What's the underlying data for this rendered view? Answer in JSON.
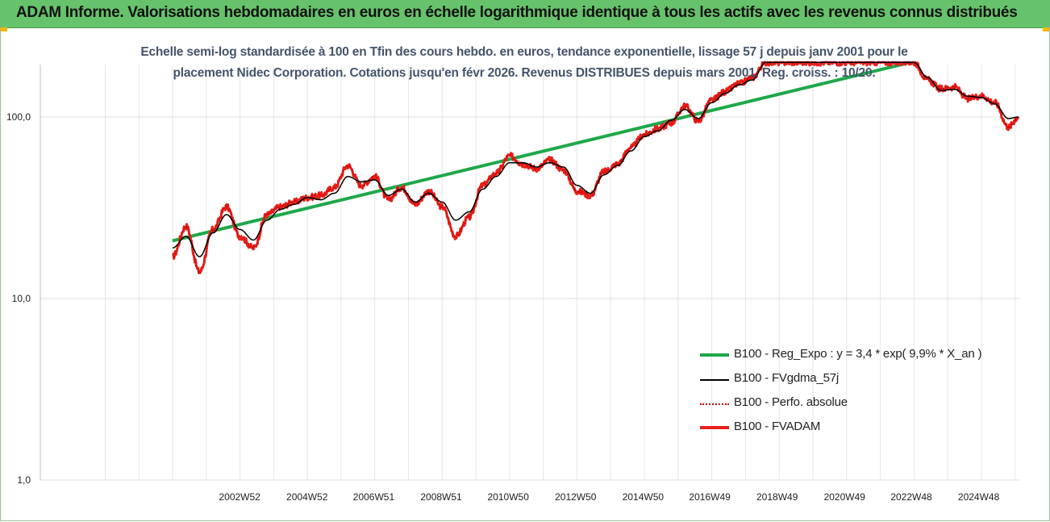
{
  "header": {
    "title": "ADAM Informe. Valorisations hebdomadaires en euros en échelle logarithmique identique à tous les actifs avec les revenus connus distribués",
    "background_color": "#66c36b"
  },
  "chart_data": {
    "type": "line",
    "title": "Echelle semi-log standardisée à 100 en Tfin des cours hebdo. en euros, tendance exponentielle, lissage 57 j depuis janv 2001 pour le placement Nidec Corporation. Cotations jusqu'en févr 2026. Revenus DISTRIBUES depuis mars 2001. Reg. croiss. : 10/20.",
    "title_lines": [
      "Echelle semi-log standardisée à 100 en Tfin des cours hebdo. en euros, tendance exponentielle, lissage 57 j depuis janv 2001 pour le",
      "placement Nidec Corporation. Cotations jusqu'en févr 2026. Revenus DISTRIBUES depuis mars 2001. Reg. croiss. : 10/20."
    ],
    "y_scale": "log",
    "ylim": [
      1,
      200
    ],
    "yticks": [
      "1,0",
      "10,0",
      "100,0"
    ],
    "x_start": 2001.0,
    "x_end": 2026.15,
    "xticks": [
      {
        "label": "2002W52",
        "x": 2002.99
      },
      {
        "label": "2004W52",
        "x": 2004.99
      },
      {
        "label": "2006W51",
        "x": 2006.97
      },
      {
        "label": "2008W51",
        "x": 2008.97
      },
      {
        "label": "2010W50",
        "x": 2010.96
      },
      {
        "label": "2012W50",
        "x": 2012.96
      },
      {
        "label": "2014W50",
        "x": 2014.96
      },
      {
        "label": "2016W49",
        "x": 2016.94
      },
      {
        "label": "2018W49",
        "x": 2018.94
      },
      {
        "label": "2020W49",
        "x": 2020.94
      },
      {
        "label": "2022W48",
        "x": 2022.92
      },
      {
        "label": "2024W48",
        "x": 2024.92
      }
    ],
    "grid": "vertical lines, horizontal at 1, 10, 100",
    "legend_placement": "bottom-right",
    "series": [
      {
        "name": "B100 - Reg_Expo : y = 3,4 * exp( 9,9% *  X_an )",
        "color": "#1fa84a",
        "style": "solid-thick",
        "x": [
          2001.0,
          2022.9
        ],
        "y": [
          20.8,
          200
        ]
      },
      {
        "name": "B100 - FVgdma_57j",
        "color": "#000000",
        "style": "solid-thin",
        "x": [
          2001.0,
          2001.4,
          2001.8,
          2002.2,
          2002.6,
          2003.0,
          2003.4,
          2003.8,
          2004.2,
          2004.6,
          2005.0,
          2005.4,
          2005.8,
          2006.2,
          2006.6,
          2007.0,
          2007.4,
          2007.8,
          2008.2,
          2008.6,
          2009.0,
          2009.4,
          2009.8,
          2010.2,
          2010.6,
          2011.0,
          2011.4,
          2011.8,
          2012.2,
          2012.6,
          2013.0,
          2013.4,
          2013.8,
          2014.2,
          2014.6,
          2015.0,
          2015.4,
          2015.8,
          2016.2,
          2016.6,
          2017.0,
          2017.4,
          2017.8,
          2018.2,
          2018.6,
          2019.0,
          2019.4,
          2019.8,
          2020.2,
          2020.6,
          2021.0,
          2021.4,
          2021.8,
          2022.2,
          2022.6,
          2023.0,
          2023.4,
          2023.8,
          2024.2,
          2024.6,
          2025.0,
          2025.4,
          2025.8,
          2026.1
        ],
        "y": [
          19,
          22,
          17,
          23,
          29,
          24,
          21,
          27,
          31,
          33,
          36,
          35,
          38,
          47,
          44,
          45,
          37,
          40,
          34,
          38,
          34,
          27,
          30,
          40,
          47,
          56,
          56,
          53,
          56,
          53,
          42,
          38,
          48,
          54,
          65,
          78,
          84,
          96,
          110,
          98,
          120,
          135,
          150,
          160,
          200,
          200,
          200,
          200,
          200,
          200,
          200,
          200,
          200,
          200,
          200,
          200,
          165,
          140,
          142,
          130,
          128,
          118,
          98,
          100
        ]
      },
      {
        "name": "B100 - Perfo. absolue",
        "color": "#c00000",
        "style": "dotted",
        "x": [
          2001.0,
          2001.4,
          2001.8,
          2002.2,
          2002.6,
          2003.0,
          2003.4,
          2003.8,
          2004.2,
          2004.6,
          2005.0,
          2005.4,
          2005.8,
          2006.2,
          2006.6,
          2007.0,
          2007.4,
          2007.8,
          2008.2,
          2008.6,
          2009.0,
          2009.4,
          2009.8,
          2010.2,
          2010.6,
          2011.0,
          2011.4,
          2011.8,
          2012.2,
          2012.6,
          2013.0,
          2013.4,
          2013.8,
          2014.2,
          2014.6,
          2015.0,
          2015.4,
          2015.8,
          2016.2,
          2016.6,
          2017.0,
          2017.4,
          2017.8,
          2018.2,
          2018.6,
          2019.0,
          2019.4,
          2019.8,
          2020.2,
          2020.6,
          2021.0,
          2021.4,
          2021.8,
          2022.2,
          2022.6,
          2023.0,
          2023.4,
          2023.8,
          2024.2,
          2024.6,
          2025.0,
          2025.4,
          2025.8,
          2026.1
        ],
        "y": [
          17,
          25,
          14,
          24,
          32,
          22,
          19,
          29,
          32,
          34,
          36,
          37,
          41,
          54,
          42,
          47,
          35,
          41,
          33,
          39,
          32,
          22,
          28,
          42,
          49,
          61,
          55,
          52,
          58,
          51,
          39,
          37,
          50,
          55,
          68,
          80,
          86,
          93,
          115,
          95,
          124,
          138,
          152,
          165,
          200,
          200,
          200,
          200,
          200,
          200,
          200,
          200,
          200,
          200,
          200,
          200,
          160,
          143,
          146,
          126,
          131,
          120,
          88,
          100
        ]
      },
      {
        "name": "B100 - FVADAM",
        "color": "#e8211b",
        "style": "solid-thick",
        "x": [
          2001.0,
          2001.4,
          2001.8,
          2002.2,
          2002.6,
          2003.0,
          2003.4,
          2003.8,
          2004.2,
          2004.6,
          2005.0,
          2005.4,
          2005.8,
          2006.2,
          2006.6,
          2007.0,
          2007.4,
          2007.8,
          2008.2,
          2008.6,
          2009.0,
          2009.4,
          2009.8,
          2010.2,
          2010.6,
          2011.0,
          2011.4,
          2011.8,
          2012.2,
          2012.6,
          2013.0,
          2013.4,
          2013.8,
          2014.2,
          2014.6,
          2015.0,
          2015.4,
          2015.8,
          2016.2,
          2016.6,
          2017.0,
          2017.4,
          2017.8,
          2018.2,
          2018.6,
          2019.0,
          2019.4,
          2019.8,
          2020.2,
          2020.6,
          2021.0,
          2021.4,
          2021.8,
          2022.2,
          2022.6,
          2023.0,
          2023.4,
          2023.8,
          2024.2,
          2024.6,
          2025.0,
          2025.4,
          2025.8,
          2026.1
        ],
        "y": [
          17,
          25,
          14,
          24,
          32,
          22,
          19,
          29,
          32,
          34,
          36,
          37,
          41,
          54,
          42,
          47,
          35,
          41,
          33,
          39,
          32,
          22,
          28,
          42,
          49,
          61,
          55,
          52,
          58,
          51,
          39,
          37,
          50,
          55,
          68,
          80,
          86,
          93,
          115,
          95,
          124,
          138,
          152,
          165,
          200,
          200,
          200,
          200,
          200,
          200,
          200,
          200,
          200,
          200,
          200,
          200,
          160,
          143,
          146,
          126,
          131,
          120,
          88,
          100
        ]
      }
    ]
  }
}
